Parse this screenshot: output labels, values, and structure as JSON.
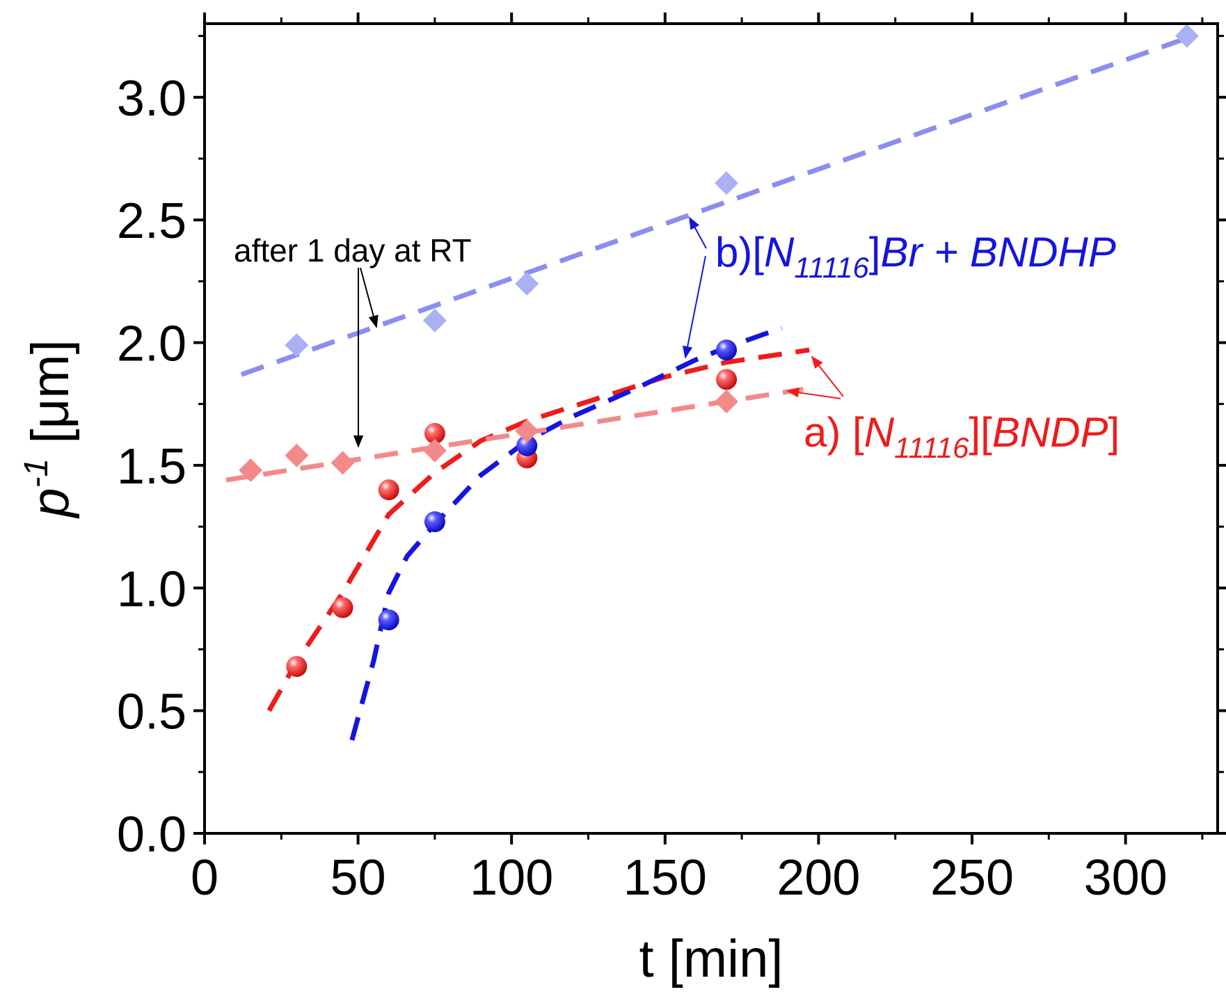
{
  "chart_data": {
    "type": "scatter",
    "title": "",
    "xlabel": "t [min]",
    "ylabel_main": "p",
    "ylabel_sup": "-1",
    "ylabel_unit": " [μm]",
    "xlim": [
      0,
      330
    ],
    "ylim": [
      0,
      3.3
    ],
    "xticks": [
      "0",
      "50",
      "100",
      "150",
      "200",
      "250",
      "300"
    ],
    "xtick_values": [
      0,
      50,
      100,
      150,
      200,
      250,
      300
    ],
    "yticks": [
      "0.0",
      "0.5",
      "1.0",
      "1.5",
      "2.0",
      "2.5",
      "3.0"
    ],
    "ytick_values": [
      0,
      0.5,
      1.0,
      1.5,
      2.0,
      2.5,
      3.0
    ],
    "grid": false,
    "series": [
      {
        "key": "a_spheres",
        "marker": "sphere",
        "color": "#ee1c1c",
        "x": [
          30,
          45,
          60,
          75,
          105,
          170
        ],
        "y": [
          0.68,
          0.92,
          1.4,
          1.63,
          1.53,
          1.85
        ]
      },
      {
        "key": "b_spheres",
        "marker": "sphere",
        "color": "#1515dd",
        "x": [
          60,
          75,
          105,
          170
        ],
        "y": [
          0.87,
          1.27,
          1.58,
          1.97
        ]
      },
      {
        "key": "a_diamonds",
        "marker": "diamond",
        "color": "#f28a8a",
        "x": [
          15,
          30,
          45,
          75,
          105,
          170
        ],
        "y": [
          1.48,
          1.54,
          1.51,
          1.56,
          1.64,
          1.76
        ]
      },
      {
        "key": "b_diamonds",
        "marker": "diamond",
        "color": "#aab0f4",
        "x": [
          30,
          75,
          105,
          170,
          320
        ],
        "y": [
          1.99,
          2.09,
          2.24,
          2.65,
          3.25
        ]
      }
    ],
    "fit_lines": [
      {
        "key": "a_fit",
        "color": "#ee1c1c",
        "x": [
          21,
          30,
          45,
          60,
          75,
          90,
          105,
          130,
          150,
          170,
          197
        ],
        "y": [
          0.5,
          0.7,
          0.98,
          1.3,
          1.47,
          1.6,
          1.68,
          1.78,
          1.86,
          1.92,
          1.97
        ]
      },
      {
        "key": "b_fit",
        "color": "#1515dd",
        "x": [
          48,
          55,
          60,
          66,
          75,
          90,
          105,
          120,
          140,
          160,
          170,
          188
        ],
        "y": [
          0.38,
          0.7,
          0.98,
          1.13,
          1.26,
          1.46,
          1.6,
          1.7,
          1.81,
          1.93,
          1.98,
          2.06
        ]
      },
      {
        "key": "a_day_fit",
        "color": "#f28a8a",
        "x": [
          7,
          195
        ],
        "y": [
          1.44,
          1.81
        ]
      },
      {
        "key": "b_day_fit",
        "color": "#8a8ef0",
        "x": [
          12,
          322
        ],
        "y": [
          1.87,
          3.25
        ]
      }
    ],
    "annotations": {
      "after_day": "after 1 day at RT",
      "label_a": {
        "prefix": "a) [",
        "cation": "N",
        "cation_sub": "11116",
        "middle": "][",
        "anion": "BNDP",
        "suffix": "]",
        "color": "#ee1c1c"
      },
      "label_b": {
        "prefix": "b)[",
        "cation": "N",
        "cation_sub": "11116",
        "middle": "]",
        "anion": "Br + BNDHP",
        "suffix": "",
        "color": "#1515dd"
      }
    }
  }
}
